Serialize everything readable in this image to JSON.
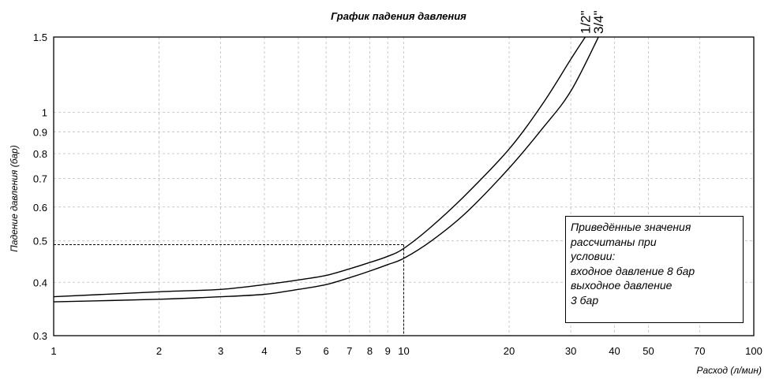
{
  "chart_data": {
    "type": "line",
    "title": "График падения давления",
    "xlabel": "Расход (л/мин)",
    "ylabel": "Падение давления (бар)",
    "x_scale": "log",
    "y_scale": "log",
    "xlim": [
      1,
      100
    ],
    "ylim": [
      0.3,
      1.5
    ],
    "x_ticks": [
      {
        "value": 1,
        "label": "1"
      },
      {
        "value": 2,
        "label": "2"
      },
      {
        "value": 3,
        "label": "3"
      },
      {
        "value": 4,
        "label": "4"
      },
      {
        "value": 5,
        "label": "5"
      },
      {
        "value": 6,
        "label": "6"
      },
      {
        "value": 7,
        "label": "7"
      },
      {
        "value": 8,
        "label": "8"
      },
      {
        "value": 9,
        "label": "9"
      },
      {
        "value": 10,
        "label": "10"
      },
      {
        "value": 20,
        "label": "20"
      },
      {
        "value": 30,
        "label": "30"
      },
      {
        "value": 40,
        "label": "40"
      },
      {
        "value": 50,
        "label": "50"
      },
      {
        "value": 70,
        "label": "70"
      },
      {
        "value": 100,
        "label": "100"
      }
    ],
    "y_ticks": [
      {
        "value": 0.3,
        "label": "0.3"
      },
      {
        "value": 0.4,
        "label": "0.4"
      },
      {
        "value": 0.5,
        "label": "0.5"
      },
      {
        "value": 0.6,
        "label": "0.6"
      },
      {
        "value": 0.7,
        "label": "0.7"
      },
      {
        "value": 0.8,
        "label": "0.8"
      },
      {
        "value": 0.9,
        "label": "0.9"
      },
      {
        "value": 1,
        "label": "1"
      },
      {
        "value": 1.5,
        "label": "1.5"
      }
    ],
    "grid": true,
    "series": [
      {
        "name": "1/2\"",
        "x": [
          1,
          2,
          3,
          4,
          5,
          6,
          7,
          8,
          9,
          10,
          12,
          15,
          20,
          25,
          30,
          33
        ],
        "y": [
          0.37,
          0.38,
          0.385,
          0.395,
          0.405,
          0.415,
          0.43,
          0.445,
          0.46,
          0.48,
          0.54,
          0.64,
          0.82,
          1.05,
          1.33,
          1.5
        ]
      },
      {
        "name": "3/4\"",
        "x": [
          1,
          2,
          3,
          4,
          5,
          6,
          7,
          8,
          9,
          10,
          12,
          15,
          20,
          25,
          30,
          36
        ],
        "y": [
          0.36,
          0.365,
          0.37,
          0.375,
          0.385,
          0.395,
          0.41,
          0.425,
          0.44,
          0.455,
          0.5,
          0.58,
          0.74,
          0.92,
          1.12,
          1.5
        ]
      }
    ],
    "reference": {
      "x": 10,
      "y": 0.49
    },
    "annotation_lines": [
      "Приведённые значения",
      "рассчитаны при",
      "условии:",
      "входное давление 8 бар",
      "выходное давление",
      "3 бар"
    ]
  }
}
